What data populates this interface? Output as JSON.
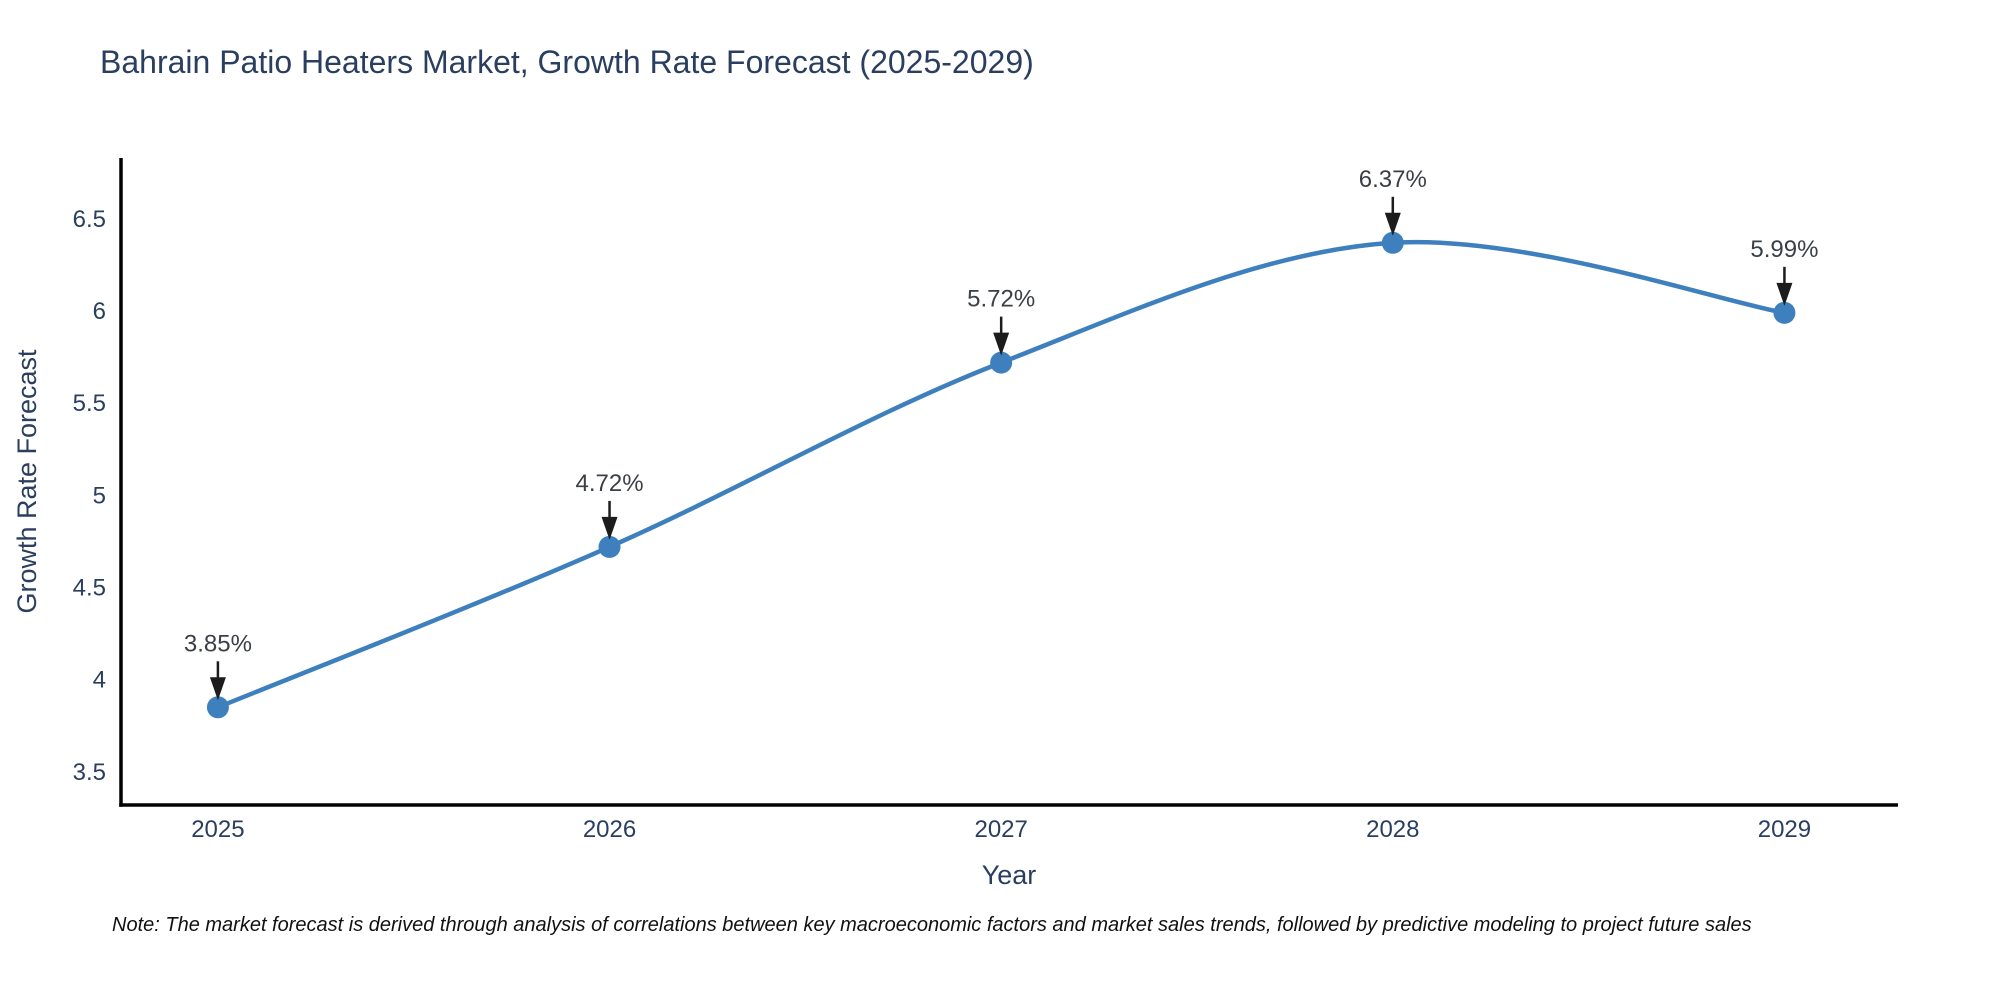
{
  "header": {
    "title": "Bahrain Patio Heaters Market, Growth Rate Forecast (2025-2029)"
  },
  "footnote": {
    "text": "Note: The market forecast is derived through analysis of correlations between key macroeconomic factors and market sales trends, followed by predictive modeling to project future sales"
  },
  "chart_data": {
    "type": "line",
    "title": "Bahrain Patio Heaters Market, Growth Rate Forecast (2025-2029)",
    "xlabel": "Year",
    "ylabel": "Growth Rate Forecast",
    "x": [
      2025,
      2026,
      2027,
      2028,
      2029
    ],
    "categories": [
      "2025",
      "2026",
      "2027",
      "2028",
      "2029"
    ],
    "values": [
      3.85,
      4.72,
      5.72,
      6.37,
      5.99
    ],
    "point_labels": [
      "3.85%",
      "4.72%",
      "5.72%",
      "6.37%",
      "5.99%"
    ],
    "yticks": [
      3.5,
      4,
      4.5,
      5,
      5.5,
      6,
      6.5
    ],
    "ytick_labels": [
      "3.5",
      "4",
      "4.5",
      "5",
      "5.5",
      "6",
      "6.5"
    ],
    "xlim": [
      2024.75,
      2029.29
    ],
    "ylim": [
      3.32,
      6.83
    ],
    "grid": false,
    "legend": "none",
    "line_shape": "spline",
    "colors": {
      "line": "#3e80bd",
      "marker": "#3e80bd",
      "axis_spine": "#000000",
      "tick_text": "#2a3f5f",
      "axis_title_text": "#2a3f5f",
      "title_text": "#2a3f5f",
      "annotation_text": "#3b4046",
      "annotation_arrow": "#1c1c1c",
      "background": "#ffffff"
    }
  }
}
